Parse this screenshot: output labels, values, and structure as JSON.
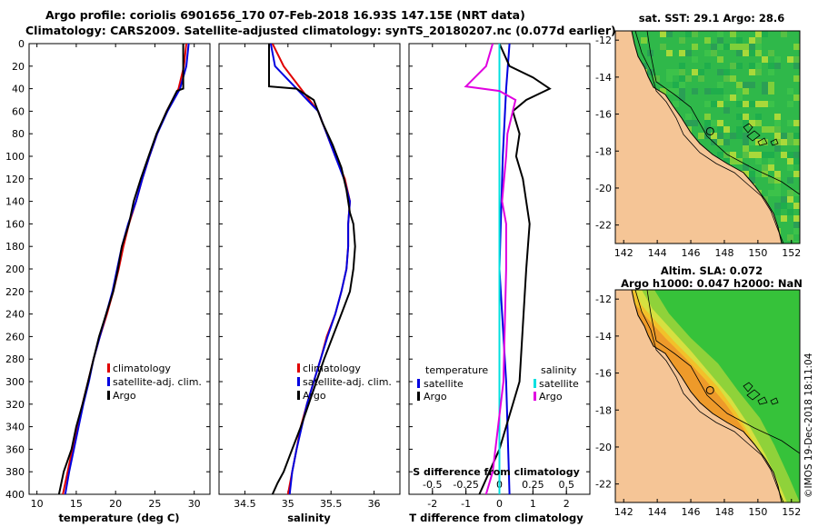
{
  "header": {
    "line1": "Argo profile: coriolis 6901656_170 07-Feb-2018 16.93S 147.15E (NRT data)",
    "line2": "Climatology: CARS2009. Satellite-adjusted climatology: synTS_20180207.nc (0.077d earlier)"
  },
  "side_stamp": "©IMOS 19-Dec-2018 18:11:04",
  "colors": {
    "climatology": "#e00000",
    "satellite": "#0000e0",
    "argo": "#000000",
    "sat_salinity": "#00e0e0",
    "argo_salinity_diff": "#e000e0",
    "land": "#f5c596"
  },
  "chart_data": [
    {
      "id": "temperature",
      "type": "line",
      "xlabel": "temperature (deg C)",
      "ylabel": "",
      "xlim": [
        9,
        32
      ],
      "ylim": [
        400,
        0
      ],
      "xticks": [
        "10",
        "15",
        "20",
        "25",
        "30"
      ],
      "yticks": [
        "0",
        "20",
        "40",
        "60",
        "80",
        "100",
        "120",
        "140",
        "160",
        "180",
        "200",
        "220",
        "240",
        "260",
        "280",
        "300",
        "320",
        "340",
        "360",
        "380",
        "400"
      ],
      "legend": [
        "climatology",
        "satellite-adj. clim.",
        "Argo"
      ],
      "series": [
        {
          "name": "climatology",
          "depth": [
            0,
            20,
            40,
            60,
            80,
            100,
            120,
            140,
            160,
            180,
            200,
            220,
            240,
            260,
            280,
            300,
            320,
            340,
            360,
            380,
            400
          ],
          "values": [
            29.0,
            28.7,
            28.0,
            26.5,
            25.3,
            24.3,
            23.4,
            22.6,
            21.7,
            21.0,
            20.4,
            19.7,
            18.9,
            18.0,
            17.2,
            16.5,
            15.8,
            15.1,
            14.5,
            13.9,
            13.3
          ]
        },
        {
          "name": "satellite-adj. clim.",
          "depth": [
            0,
            20,
            40,
            60,
            80,
            100,
            120,
            140,
            160,
            180,
            200,
            220,
            240,
            260,
            280,
            300,
            320,
            340,
            360,
            380,
            400
          ],
          "values": [
            29.3,
            29.0,
            28.2,
            26.6,
            25.3,
            24.3,
            23.4,
            22.6,
            21.6,
            20.8,
            20.2,
            19.6,
            18.8,
            18.0,
            17.2,
            16.6,
            15.9,
            15.3,
            14.7,
            14.1,
            13.6
          ]
        },
        {
          "name": "Argo",
          "depth": [
            0,
            20,
            40,
            42,
            60,
            80,
            100,
            120,
            140,
            160,
            180,
            200,
            220,
            240,
            260,
            280,
            300,
            320,
            340,
            360,
            380,
            400
          ],
          "values": [
            28.6,
            28.6,
            28.6,
            27.8,
            26.5,
            25.2,
            24.2,
            23.2,
            22.3,
            21.7,
            20.8,
            20.3,
            19.7,
            18.8,
            17.9,
            17.2,
            16.5,
            15.8,
            15.0,
            14.4,
            13.4,
            12.8
          ]
        }
      ]
    },
    {
      "id": "salinity",
      "type": "line",
      "xlabel": "salinity",
      "ylabel": "",
      "xlim": [
        34.2,
        36.3
      ],
      "ylim": [
        400,
        0
      ],
      "xticks": [
        "34.5",
        "35",
        "35.5",
        "36"
      ],
      "legend": [
        "climatology",
        "satellite-adj. clim.",
        "Argo"
      ],
      "series": [
        {
          "name": "climatology",
          "depth": [
            0,
            20,
            40,
            60,
            80,
            100,
            120,
            140,
            160,
            180,
            200,
            220,
            240,
            260,
            280,
            300,
            320,
            340,
            360,
            380,
            400
          ],
          "values": [
            34.82,
            34.95,
            35.15,
            35.35,
            35.45,
            35.55,
            35.66,
            35.72,
            35.7,
            35.7,
            35.68,
            35.62,
            35.55,
            35.45,
            35.38,
            35.3,
            35.22,
            35.15,
            35.1,
            35.05,
            35.0
          ]
        },
        {
          "name": "satellite-adj. clim.",
          "depth": [
            0,
            20,
            40,
            60,
            80,
            100,
            120,
            140,
            160,
            180,
            200,
            220,
            240,
            260,
            280,
            300,
            320,
            340,
            360,
            380,
            400
          ],
          "values": [
            34.8,
            34.85,
            35.1,
            35.35,
            35.45,
            35.55,
            35.65,
            35.72,
            35.7,
            35.7,
            35.68,
            35.62,
            35.55,
            35.46,
            35.38,
            35.3,
            35.22,
            35.16,
            35.1,
            35.05,
            35.02
          ]
        },
        {
          "name": "Argo",
          "depth": [
            0,
            20,
            38,
            40,
            50,
            70,
            90,
            110,
            130,
            150,
            160,
            180,
            200,
            220,
            240,
            260,
            280,
            300,
            320,
            340,
            360,
            380,
            390,
            400
          ],
          "values": [
            34.78,
            34.78,
            34.78,
            35.1,
            35.3,
            35.4,
            35.52,
            35.62,
            35.68,
            35.72,
            35.76,
            35.78,
            35.76,
            35.72,
            35.62,
            35.52,
            35.42,
            35.33,
            35.24,
            35.15,
            35.05,
            34.95,
            34.88,
            34.82
          ]
        }
      ]
    },
    {
      "id": "difference",
      "type": "line",
      "xlabel": "T difference from climatology",
      "top_axis_label": "S difference from climatology",
      "xlim": [
        -2.7,
        2.7
      ],
      "ylim": [
        400,
        0
      ],
      "xticks": [
        "-2",
        "-1",
        "0",
        "1",
        "2"
      ],
      "top_xlim": [
        -0.675,
        0.675
      ],
      "top_xticks": [
        "-0.5",
        "-0.25",
        "0",
        "0.25",
        "0.5"
      ],
      "legend_temperature": {
        "title": "temperature",
        "entries": [
          "satellite",
          "Argo"
        ]
      },
      "legend_salinity": {
        "title": "salinity",
        "entries": [
          "satellite",
          "Argo"
        ]
      },
      "series": [
        {
          "name": "temperature satellite",
          "depth": [
            0,
            40,
            100,
            200,
            300,
            400
          ],
          "values": [
            0.3,
            0.2,
            0.1,
            0.0,
            0.2,
            0.3
          ]
        },
        {
          "name": "temperature Argo",
          "depth": [
            0,
            20,
            30,
            40,
            50,
            60,
            80,
            100,
            120,
            140,
            160,
            200,
            250,
            300,
            360,
            400
          ],
          "values": [
            0.0,
            0.3,
            1.0,
            1.5,
            0.8,
            0.4,
            0.6,
            0.5,
            0.7,
            0.8,
            0.9,
            0.8,
            0.7,
            0.6,
            0.0,
            -0.6
          ]
        },
        {
          "name": "salinity satellite",
          "depth": [
            0,
            40,
            80,
            120,
            140,
            200,
            300,
            400
          ],
          "values": [
            0.0,
            0.0,
            0.0,
            0.0,
            0.0,
            0.0,
            0.0,
            0.0
          ]
        },
        {
          "name": "salinity Argo",
          "depth": [
            0,
            20,
            38,
            42,
            50,
            60,
            80,
            100,
            140,
            160,
            200,
            300,
            380,
            400
          ],
          "values": [
            -0.05,
            -0.1,
            -0.25,
            0.0,
            0.12,
            0.1,
            0.06,
            0.05,
            0.02,
            0.05,
            0.05,
            0.03,
            -0.05,
            -0.1
          ]
        }
      ]
    }
  ],
  "maps": [
    {
      "id": "sst-map",
      "title": "sat. SST: 29.1 Argo: 28.6",
      "xticks": [
        "142",
        "144",
        "146",
        "148",
        "150",
        "152"
      ],
      "yticks": [
        "-12",
        "-14",
        "-16",
        "-18",
        "-20",
        "-22"
      ],
      "xlim": [
        141.5,
        152.5
      ],
      "ylim": [
        -23,
        -11.5
      ],
      "float_lon": 147.15,
      "float_lat": -16.93
    },
    {
      "id": "sla-map",
      "title_line1": "Altim. SLA: 0.072",
      "title_line2": "Argo h1000: 0.047 h2000: NaN",
      "xticks": [
        "142",
        "144",
        "146",
        "148",
        "150",
        "152"
      ],
      "yticks": [
        "-12",
        "-14",
        "-16",
        "-18",
        "-20",
        "-22"
      ],
      "xlim": [
        141.5,
        152.5
      ],
      "ylim": [
        -23,
        -11.5
      ],
      "float_lon": 147.15,
      "float_lat": -16.93
    }
  ]
}
